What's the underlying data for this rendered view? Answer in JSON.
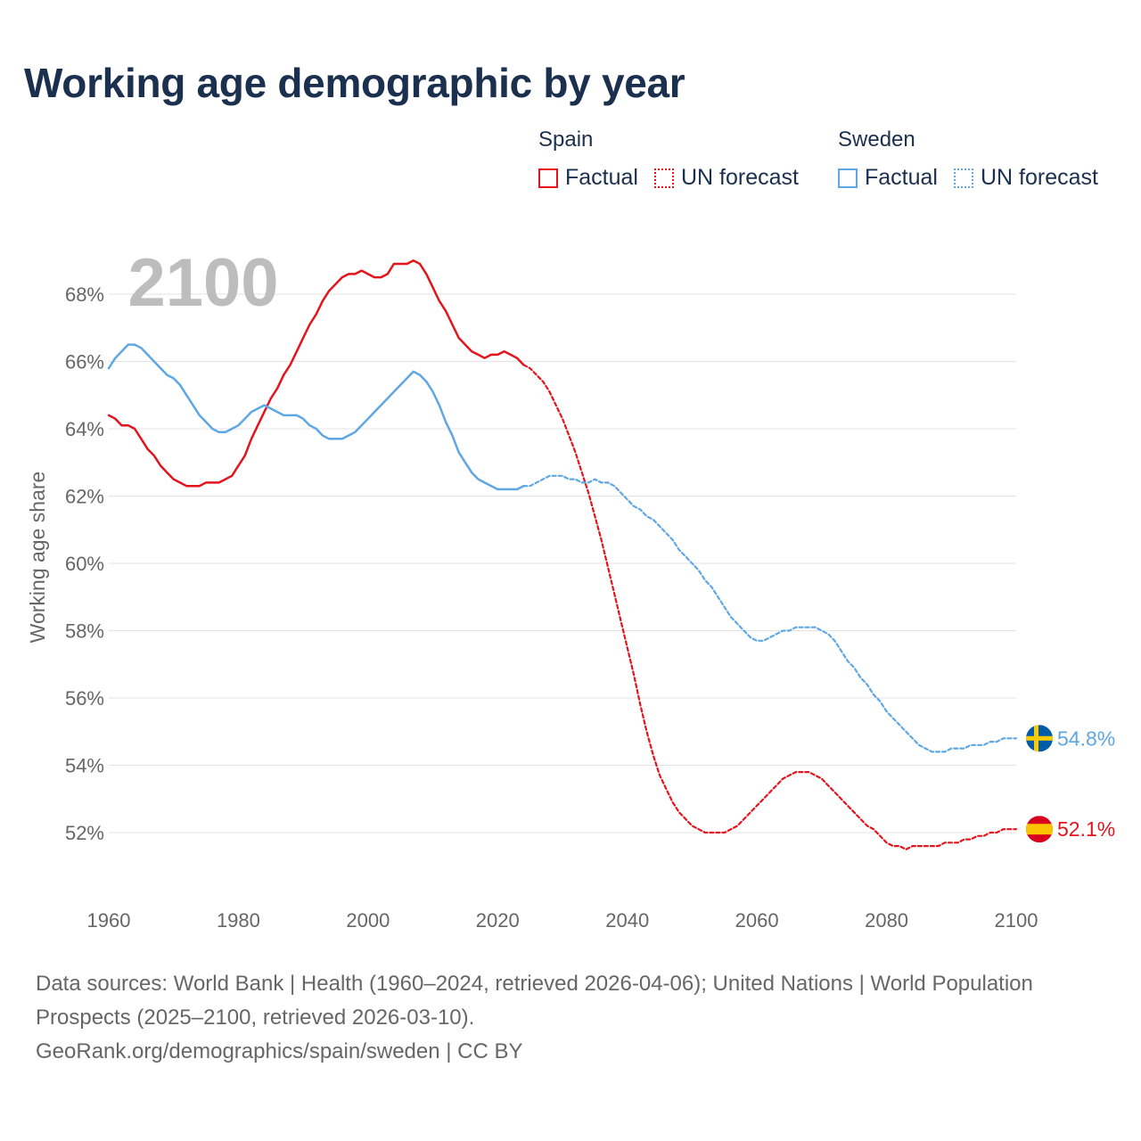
{
  "title": "Working age demographic by year",
  "legend": {
    "spain": {
      "name": "Spain",
      "factual": "Factual",
      "forecast": "UN forecast",
      "color": "#e4141d"
    },
    "sweden": {
      "name": "Sweden",
      "factual": "Factual",
      "forecast": "UN forecast",
      "color": "#5ea7e4"
    }
  },
  "year_watermark": "2100",
  "source": {
    "line1": "Data sources: World Bank | Health (1960–2024, retrieved 2026-04-06); United Nations | World Population Prospects (2025–2100, retrieved 2026-03-10).",
    "line2": "GeoRank.org/demographics/spain/sweden | CC BY"
  },
  "chart_data": {
    "type": "line",
    "title": "Working age demographic by year",
    "xlabel": "",
    "ylabel": "Working age share",
    "xlim": [
      1960,
      2100
    ],
    "ylim": [
      50.5,
      69.5
    ],
    "x_ticks": [
      1960,
      1980,
      2000,
      2020,
      2040,
      2060,
      2080,
      2100
    ],
    "x_tick_labels": [
      "1960",
      "1980",
      "2000",
      "2020",
      "2040",
      "2060",
      "2080",
      "2100"
    ],
    "y_ticks": [
      52,
      54,
      56,
      58,
      60,
      62,
      64,
      66,
      68
    ],
    "y_tick_labels": [
      "52%",
      "54%",
      "56%",
      "58%",
      "60%",
      "62%",
      "64%",
      "66%",
      "68%"
    ],
    "grid": true,
    "series": [
      {
        "name": "Spain",
        "part": "Factual",
        "style": "solid",
        "color": "#e4141d",
        "points": [
          [
            1960,
            64.4
          ],
          [
            1961,
            64.3
          ],
          [
            1962,
            64.1
          ],
          [
            1963,
            64.1
          ],
          [
            1964,
            64.0
          ],
          [
            1965,
            63.7
          ],
          [
            1966,
            63.4
          ],
          [
            1967,
            63.2
          ],
          [
            1968,
            62.9
          ],
          [
            1969,
            62.7
          ],
          [
            1970,
            62.5
          ],
          [
            1971,
            62.4
          ],
          [
            1972,
            62.3
          ],
          [
            1973,
            62.3
          ],
          [
            1974,
            62.3
          ],
          [
            1975,
            62.4
          ],
          [
            1976,
            62.4
          ],
          [
            1977,
            62.4
          ],
          [
            1978,
            62.5
          ],
          [
            1979,
            62.6
          ],
          [
            1980,
            62.9
          ],
          [
            1981,
            63.2
          ],
          [
            1982,
            63.7
          ],
          [
            1983,
            64.1
          ],
          [
            1984,
            64.5
          ],
          [
            1985,
            64.9
          ],
          [
            1986,
            65.2
          ],
          [
            1987,
            65.6
          ],
          [
            1988,
            65.9
          ],
          [
            1989,
            66.3
          ],
          [
            1990,
            66.7
          ],
          [
            1991,
            67.1
          ],
          [
            1992,
            67.4
          ],
          [
            1993,
            67.8
          ],
          [
            1994,
            68.1
          ],
          [
            1995,
            68.3
          ],
          [
            1996,
            68.5
          ],
          [
            1997,
            68.6
          ],
          [
            1998,
            68.6
          ],
          [
            1999,
            68.7
          ],
          [
            2000,
            68.6
          ],
          [
            2001,
            68.5
          ],
          [
            2002,
            68.5
          ],
          [
            2003,
            68.6
          ],
          [
            2004,
            68.9
          ],
          [
            2005,
            68.9
          ],
          [
            2006,
            68.9
          ],
          [
            2007,
            69.0
          ],
          [
            2008,
            68.9
          ],
          [
            2009,
            68.6
          ],
          [
            2010,
            68.2
          ],
          [
            2011,
            67.8
          ],
          [
            2012,
            67.5
          ],
          [
            2013,
            67.1
          ],
          [
            2014,
            66.7
          ],
          [
            2015,
            66.5
          ],
          [
            2016,
            66.3
          ],
          [
            2017,
            66.2
          ],
          [
            2018,
            66.1
          ],
          [
            2019,
            66.2
          ],
          [
            2020,
            66.2
          ],
          [
            2021,
            66.3
          ],
          [
            2022,
            66.2
          ],
          [
            2023,
            66.1
          ],
          [
            2024,
            65.9
          ]
        ]
      },
      {
        "name": "Spain",
        "part": "UN forecast",
        "style": "dotted",
        "color": "#e4141d",
        "points": [
          [
            2024,
            65.9
          ],
          [
            2025,
            65.8
          ],
          [
            2026,
            65.6
          ],
          [
            2027,
            65.4
          ],
          [
            2028,
            65.1
          ],
          [
            2029,
            64.7
          ],
          [
            2030,
            64.3
          ],
          [
            2031,
            63.8
          ],
          [
            2032,
            63.3
          ],
          [
            2033,
            62.7
          ],
          [
            2034,
            62.1
          ],
          [
            2035,
            61.4
          ],
          [
            2036,
            60.7
          ],
          [
            2037,
            59.9
          ],
          [
            2038,
            59.1
          ],
          [
            2039,
            58.3
          ],
          [
            2040,
            57.5
          ],
          [
            2041,
            56.7
          ],
          [
            2042,
            55.8
          ],
          [
            2043,
            55.0
          ],
          [
            2044,
            54.3
          ],
          [
            2045,
            53.7
          ],
          [
            2046,
            53.3
          ],
          [
            2047,
            52.9
          ],
          [
            2048,
            52.6
          ],
          [
            2049,
            52.4
          ],
          [
            2050,
            52.2
          ],
          [
            2051,
            52.1
          ],
          [
            2052,
            52.0
          ],
          [
            2053,
            52.0
          ],
          [
            2054,
            52.0
          ],
          [
            2055,
            52.0
          ],
          [
            2056,
            52.1
          ],
          [
            2057,
            52.2
          ],
          [
            2058,
            52.4
          ],
          [
            2059,
            52.6
          ],
          [
            2060,
            52.8
          ],
          [
            2061,
            53.0
          ],
          [
            2062,
            53.2
          ],
          [
            2063,
            53.4
          ],
          [
            2064,
            53.6
          ],
          [
            2065,
            53.7
          ],
          [
            2066,
            53.8
          ],
          [
            2067,
            53.8
          ],
          [
            2068,
            53.8
          ],
          [
            2069,
            53.7
          ],
          [
            2070,
            53.6
          ],
          [
            2071,
            53.4
          ],
          [
            2072,
            53.2
          ],
          [
            2073,
            53.0
          ],
          [
            2074,
            52.8
          ],
          [
            2075,
            52.6
          ],
          [
            2076,
            52.4
          ],
          [
            2077,
            52.2
          ],
          [
            2078,
            52.1
          ],
          [
            2079,
            51.9
          ],
          [
            2080,
            51.7
          ],
          [
            2081,
            51.6
          ],
          [
            2082,
            51.6
          ],
          [
            2083,
            51.5
          ],
          [
            2084,
            51.6
          ],
          [
            2085,
            51.6
          ],
          [
            2086,
            51.6
          ],
          [
            2087,
            51.6
          ],
          [
            2088,
            51.6
          ],
          [
            2089,
            51.7
          ],
          [
            2090,
            51.7
          ],
          [
            2091,
            51.7
          ],
          [
            2092,
            51.8
          ],
          [
            2093,
            51.8
          ],
          [
            2094,
            51.9
          ],
          [
            2095,
            51.9
          ],
          [
            2096,
            52.0
          ],
          [
            2097,
            52.0
          ],
          [
            2098,
            52.1
          ],
          [
            2099,
            52.1
          ],
          [
            2100,
            52.1
          ]
        ]
      },
      {
        "name": "Sweden",
        "part": "Factual",
        "style": "solid",
        "color": "#5ea7e4",
        "points": [
          [
            1960,
            65.8
          ],
          [
            1961,
            66.1
          ],
          [
            1962,
            66.3
          ],
          [
            1963,
            66.5
          ],
          [
            1964,
            66.5
          ],
          [
            1965,
            66.4
          ],
          [
            1966,
            66.2
          ],
          [
            1967,
            66.0
          ],
          [
            1968,
            65.8
          ],
          [
            1969,
            65.6
          ],
          [
            1970,
            65.5
          ],
          [
            1971,
            65.3
          ],
          [
            1972,
            65.0
          ],
          [
            1973,
            64.7
          ],
          [
            1974,
            64.4
          ],
          [
            1975,
            64.2
          ],
          [
            1976,
            64.0
          ],
          [
            1977,
            63.9
          ],
          [
            1978,
            63.9
          ],
          [
            1979,
            64.0
          ],
          [
            1980,
            64.1
          ],
          [
            1981,
            64.3
          ],
          [
            1982,
            64.5
          ],
          [
            1983,
            64.6
          ],
          [
            1984,
            64.7
          ],
          [
            1985,
            64.6
          ],
          [
            1986,
            64.5
          ],
          [
            1987,
            64.4
          ],
          [
            1988,
            64.4
          ],
          [
            1989,
            64.4
          ],
          [
            1990,
            64.3
          ],
          [
            1991,
            64.1
          ],
          [
            1992,
            64.0
          ],
          [
            1993,
            63.8
          ],
          [
            1994,
            63.7
          ],
          [
            1995,
            63.7
          ],
          [
            1996,
            63.7
          ],
          [
            1997,
            63.8
          ],
          [
            1998,
            63.9
          ],
          [
            1999,
            64.1
          ],
          [
            2000,
            64.3
          ],
          [
            2001,
            64.5
          ],
          [
            2002,
            64.7
          ],
          [
            2003,
            64.9
          ],
          [
            2004,
            65.1
          ],
          [
            2005,
            65.3
          ],
          [
            2006,
            65.5
          ],
          [
            2007,
            65.7
          ],
          [
            2008,
            65.6
          ],
          [
            2009,
            65.4
          ],
          [
            2010,
            65.1
          ],
          [
            2011,
            64.7
          ],
          [
            2012,
            64.2
          ],
          [
            2013,
            63.8
          ],
          [
            2014,
            63.3
          ],
          [
            2015,
            63.0
          ],
          [
            2016,
            62.7
          ],
          [
            2017,
            62.5
          ],
          [
            2018,
            62.4
          ],
          [
            2019,
            62.3
          ],
          [
            2020,
            62.2
          ],
          [
            2021,
            62.2
          ],
          [
            2022,
            62.2
          ],
          [
            2023,
            62.2
          ],
          [
            2024,
            62.3
          ]
        ]
      },
      {
        "name": "Sweden",
        "part": "UN forecast",
        "style": "dotted",
        "color": "#5ea7e4",
        "points": [
          [
            2024,
            62.3
          ],
          [
            2025,
            62.3
          ],
          [
            2026,
            62.4
          ],
          [
            2027,
            62.5
          ],
          [
            2028,
            62.6
          ],
          [
            2029,
            62.6
          ],
          [
            2030,
            62.6
          ],
          [
            2031,
            62.5
          ],
          [
            2032,
            62.5
          ],
          [
            2033,
            62.4
          ],
          [
            2034,
            62.4
          ],
          [
            2035,
            62.5
          ],
          [
            2036,
            62.4
          ],
          [
            2037,
            62.4
          ],
          [
            2038,
            62.3
          ],
          [
            2039,
            62.1
          ],
          [
            2040,
            61.9
          ],
          [
            2041,
            61.7
          ],
          [
            2042,
            61.6
          ],
          [
            2043,
            61.4
          ],
          [
            2044,
            61.3
          ],
          [
            2045,
            61.1
          ],
          [
            2046,
            60.9
          ],
          [
            2047,
            60.7
          ],
          [
            2048,
            60.4
          ],
          [
            2049,
            60.2
          ],
          [
            2050,
            60.0
          ],
          [
            2051,
            59.8
          ],
          [
            2052,
            59.5
          ],
          [
            2053,
            59.3
          ],
          [
            2054,
            59.0
          ],
          [
            2055,
            58.7
          ],
          [
            2056,
            58.4
          ],
          [
            2057,
            58.2
          ],
          [
            2058,
            58.0
          ],
          [
            2059,
            57.8
          ],
          [
            2060,
            57.7
          ],
          [
            2061,
            57.7
          ],
          [
            2062,
            57.8
          ],
          [
            2063,
            57.9
          ],
          [
            2064,
            58.0
          ],
          [
            2065,
            58.0
          ],
          [
            2066,
            58.1
          ],
          [
            2067,
            58.1
          ],
          [
            2068,
            58.1
          ],
          [
            2069,
            58.1
          ],
          [
            2070,
            58.0
          ],
          [
            2071,
            57.9
          ],
          [
            2072,
            57.7
          ],
          [
            2073,
            57.4
          ],
          [
            2074,
            57.1
          ],
          [
            2075,
            56.9
          ],
          [
            2076,
            56.6
          ],
          [
            2077,
            56.4
          ],
          [
            2078,
            56.1
          ],
          [
            2079,
            55.9
          ],
          [
            2080,
            55.6
          ],
          [
            2081,
            55.4
          ],
          [
            2082,
            55.2
          ],
          [
            2083,
            55.0
          ],
          [
            2084,
            54.8
          ],
          [
            2085,
            54.6
          ],
          [
            2086,
            54.5
          ],
          [
            2087,
            54.4
          ],
          [
            2088,
            54.4
          ],
          [
            2089,
            54.4
          ],
          [
            2090,
            54.5
          ],
          [
            2091,
            54.5
          ],
          [
            2092,
            54.5
          ],
          [
            2093,
            54.6
          ],
          [
            2094,
            54.6
          ],
          [
            2095,
            54.6
          ],
          [
            2096,
            54.7
          ],
          [
            2097,
            54.7
          ],
          [
            2098,
            54.8
          ],
          [
            2099,
            54.8
          ],
          [
            2100,
            54.8
          ]
        ]
      }
    ],
    "end_labels": [
      {
        "name": "Sweden",
        "value": 54.8,
        "label": "54.8%",
        "color": "#5ea7e4"
      },
      {
        "name": "Spain",
        "value": 52.1,
        "label": "52.1%",
        "color": "#e4141d"
      }
    ]
  }
}
